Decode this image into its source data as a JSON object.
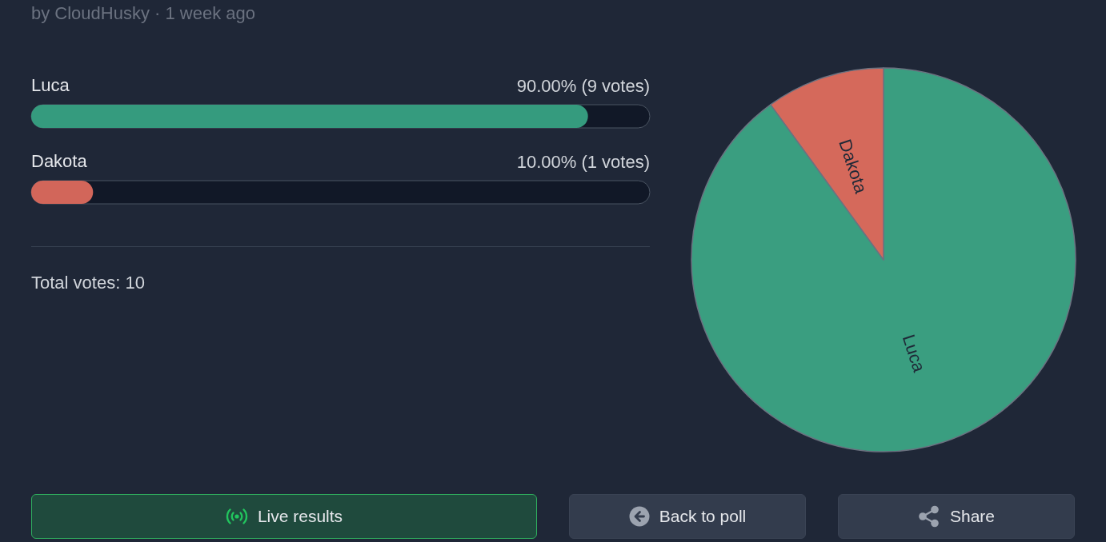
{
  "chart_data": [
    {
      "type": "bar",
      "orientation": "horizontal",
      "subtitle": "by CloudHusky · 1 week ago",
      "categories": [
        "Luca",
        "Dakota"
      ],
      "values": [
        90,
        10
      ],
      "colors": [
        "#359b7e",
        "#d2665a"
      ],
      "xlim": [
        0,
        100
      ],
      "value_labels": [
        "90.00% (9 votes)",
        "10.00% (1 votes)"
      ],
      "tick_labels": "y",
      "annotations": [
        "Total votes: 10",
        "Live results",
        "Back to poll",
        "Share"
      ]
    },
    {
      "type": "pie",
      "categories": [
        "Luca",
        "Dakota"
      ],
      "values": [
        90,
        10
      ],
      "colors": [
        "#3a9e80",
        "#d5695b"
      ]
    }
  ]
}
